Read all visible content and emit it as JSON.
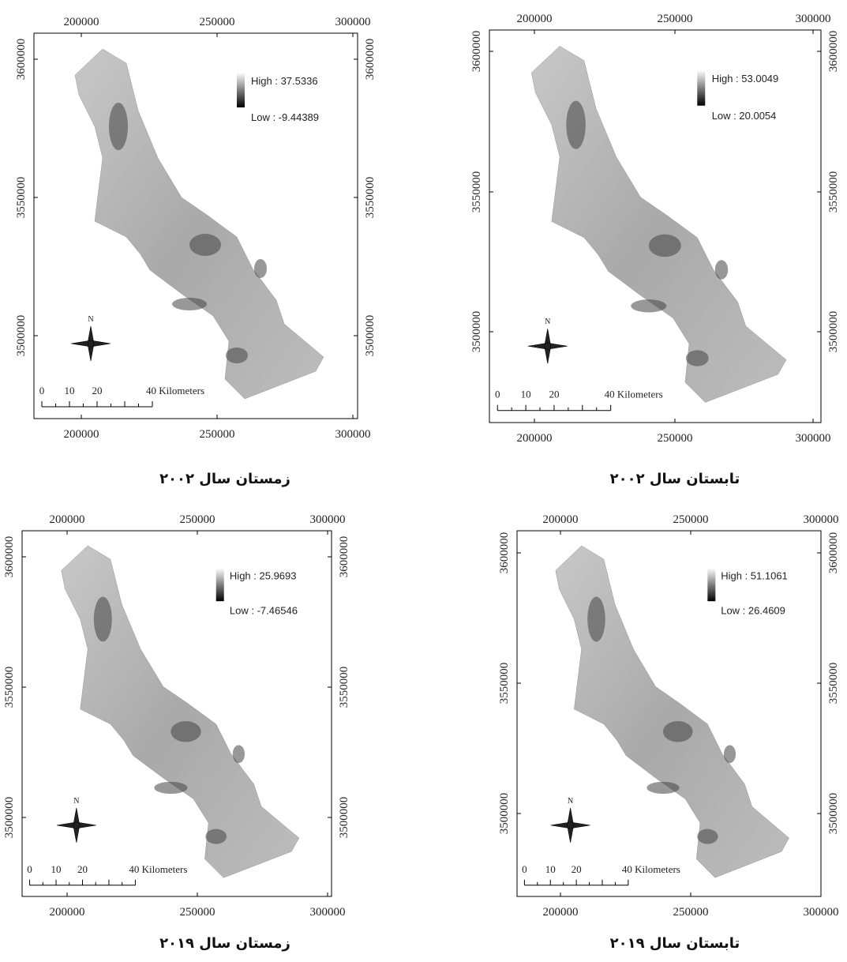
{
  "panels": [
    {
      "caption": "زمستان سال ۲۰۰۲",
      "high": "High : 37.5336",
      "low": "Low : -9.44389"
    },
    {
      "caption": "تابستان سال ۲۰۰۲",
      "high": "High : 53.0049",
      "low": "Low : 20.0054"
    },
    {
      "caption": "زمستان سال ۲۰۱۹",
      "high": "High : 25.9693",
      "low": "Low : -7.46546"
    },
    {
      "caption": "تابستان سال ۲۰۱۹",
      "high": "High : 51.1061",
      "low": "Low : 26.4609"
    }
  ],
  "x_ticks": [
    "200000",
    "250000",
    "300000"
  ],
  "y_ticks": [
    "3600000",
    "3550000",
    "3500000"
  ],
  "north": "N",
  "scale_labels": [
    "0",
    "10",
    "20",
    "40 Kilometers"
  ]
}
